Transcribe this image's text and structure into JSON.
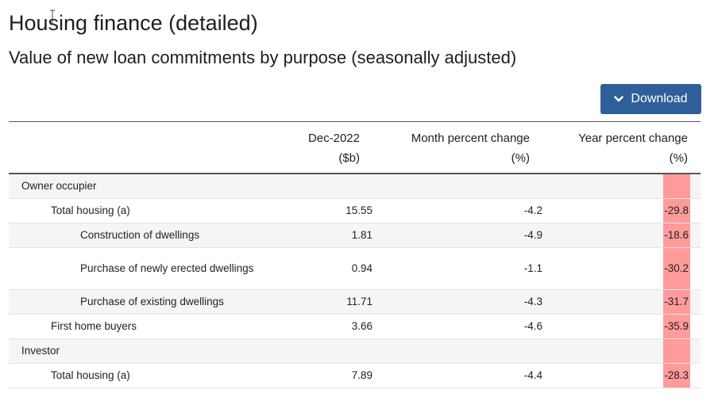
{
  "page": {
    "title": "Housing finance (detailed)",
    "subtitle": "Value of new loan commitments by purpose (seasonally adjusted)",
    "download_label": "Download"
  },
  "colors": {
    "button": "#2f5f98",
    "highlight": "#ff9b9b",
    "row_shade": "#f5f5f5"
  },
  "table": {
    "headers": [
      {
        "line1": "",
        "line2": ""
      },
      {
        "line1": "Dec-2022",
        "line2": "($b)"
      },
      {
        "line1": "Month percent change",
        "line2": "(%)"
      },
      {
        "line1": "Year percent change",
        "line2": "(%)"
      }
    ],
    "rows": [
      {
        "label": "Owner occupier",
        "level": 0,
        "value": "",
        "month": "",
        "year": ""
      },
      {
        "label": "Total housing (a)",
        "level": 1,
        "value": "15.55",
        "month": "-4.2",
        "year": "-29.8"
      },
      {
        "label": "Construction of dwellings",
        "level": 2,
        "value": "1.81",
        "month": "-4.9",
        "year": "-18.6"
      },
      {
        "label": "Purchase of newly erected dwellings",
        "level": 2,
        "value": "0.94",
        "month": "-1.1",
        "year": "-30.2"
      },
      {
        "label": "Purchase of existing dwellings",
        "level": 2,
        "value": "11.71",
        "month": "-4.3",
        "year": "-31.7"
      },
      {
        "label": "First home buyers",
        "level": 1,
        "value": "3.66",
        "month": "-4.6",
        "year": "-35.9"
      },
      {
        "label": "Investor",
        "level": 0,
        "value": "",
        "month": "",
        "year": ""
      },
      {
        "label": "Total housing (a)",
        "level": 1,
        "value": "7.89",
        "month": "-4.4",
        "year": "-28.3"
      }
    ]
  }
}
